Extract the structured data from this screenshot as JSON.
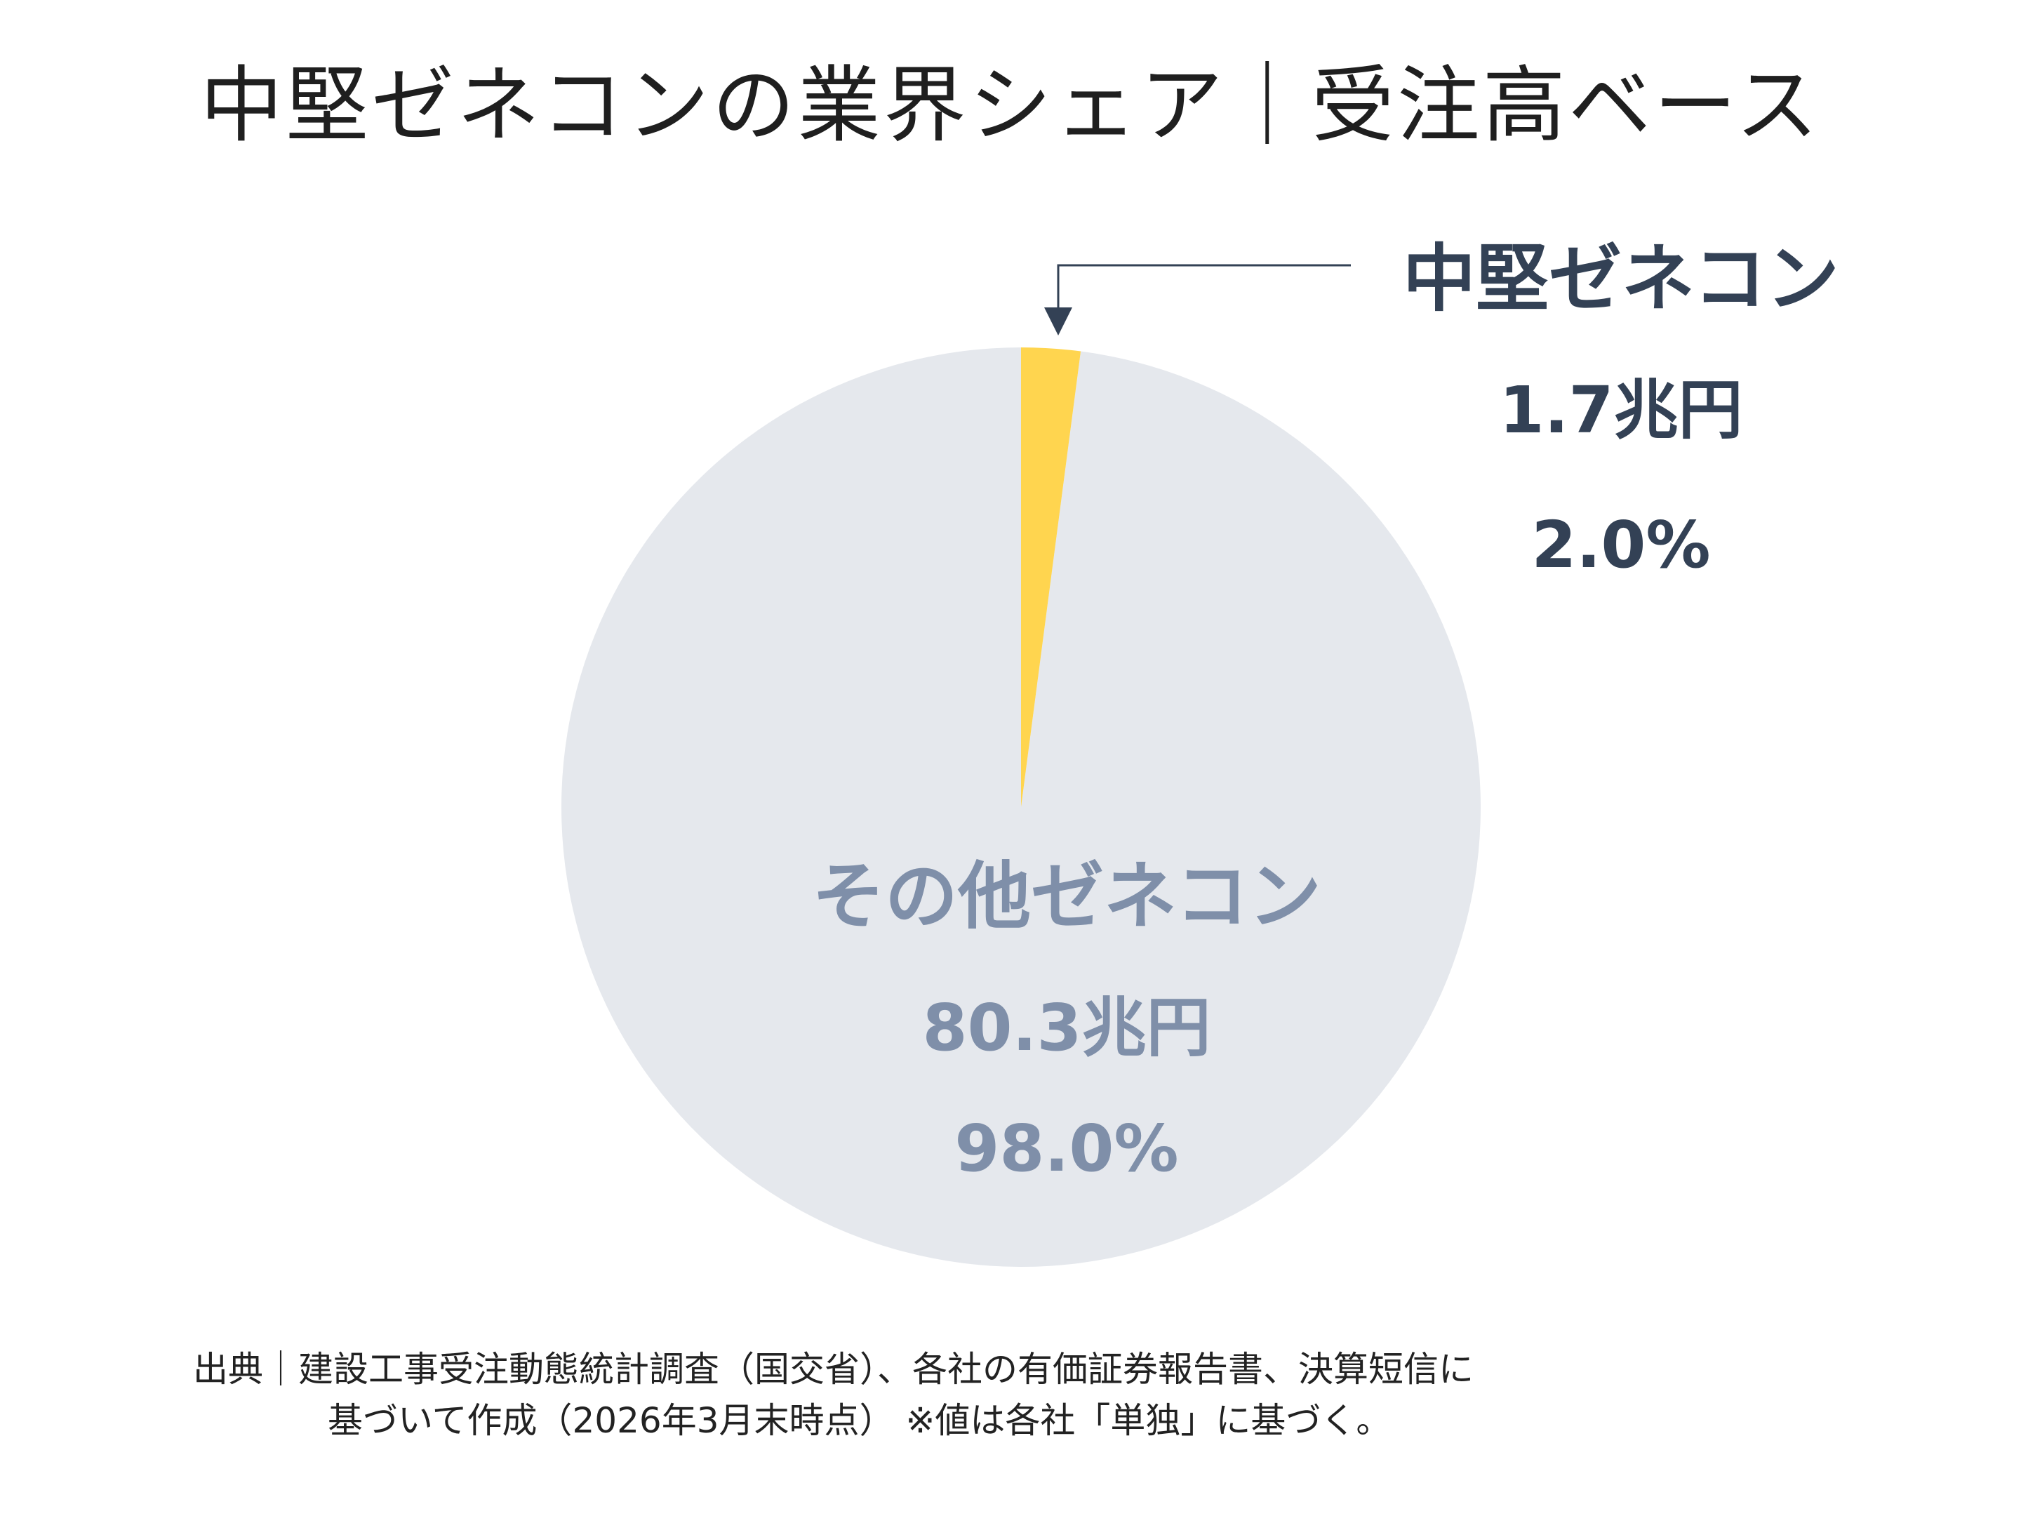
{
  "title": "中堅ゼネコンの業界シェア｜受注高ベース",
  "chart_data": {
    "type": "pie",
    "slices": [
      {
        "name": "中堅ゼネコン",
        "value": 1.7,
        "value_label": "1.7兆円",
        "percent": 2.0,
        "percent_label": "2.0%",
        "color": "#FFD54F",
        "label_color": "#334155"
      },
      {
        "name": "その他ゼネコン",
        "value": 80.3,
        "value_label": "80.3兆円",
        "percent": 98.0,
        "percent_label": "98.0%",
        "color": "#E5E8ED",
        "label_color": "#7F8FA9"
      }
    ],
    "start_angle_deg": 0,
    "direction": "clockwise"
  },
  "source": {
    "line1": "出典｜建設工事受注動態統計調査（国交省）、各社の有価証券報告書、決算短信に",
    "line2": "基づいて作成（2026年3月末時点） ※値は各社「単独」に基づく。"
  },
  "colors": {
    "arrow": "#334155"
  }
}
